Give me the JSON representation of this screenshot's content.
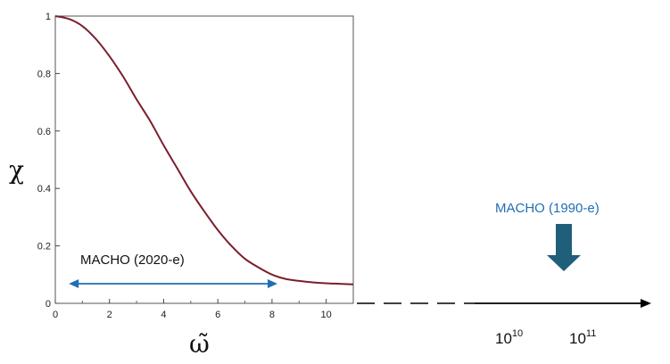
{
  "chart_data": {
    "type": "line",
    "ylabel": "χ",
    "xlabel": "ω̃",
    "xlim": [
      0,
      11
    ],
    "ylim": [
      0,
      1
    ],
    "x_ticks": [
      "0",
      "2",
      "4",
      "6",
      "8",
      "10"
    ],
    "y_ticks": [
      "0",
      "0.2",
      "0.4",
      "0.6",
      "0.8",
      "1"
    ],
    "grid": false,
    "series": [
      {
        "x": [
          0,
          0.5,
          1,
          1.5,
          2,
          2.5,
          3,
          3.5,
          4,
          4.5,
          5,
          5.5,
          6,
          6.5,
          7,
          7.5,
          8,
          8.5,
          9,
          9.5,
          10,
          10.5,
          11
        ],
        "y": [
          1.0,
          0.99,
          0.965,
          0.92,
          0.86,
          0.79,
          0.71,
          0.635,
          0.55,
          0.47,
          0.39,
          0.32,
          0.255,
          0.2,
          0.155,
          0.125,
          0.1,
          0.085,
          0.078,
          0.073,
          0.07,
          0.068,
          0.066
        ]
      }
    ],
    "annotations": {
      "range_label": "MACHO (2020-e)",
      "range_x": [
        0.5,
        8.2
      ],
      "arrow_label": "MACHO (1990-e)",
      "extended_axis_ticks": [
        {
          "base": "10",
          "exp": "10"
        },
        {
          "base": "10",
          "exp": "11"
        }
      ]
    }
  },
  "colors": {
    "curve": "#7a1e2e",
    "range_arrow": "#1f6fb5",
    "range_label": "#111111",
    "arrow_label": "#1f6fb5",
    "block_arrow": "#1f5f7a",
    "axis": "#000000"
  }
}
